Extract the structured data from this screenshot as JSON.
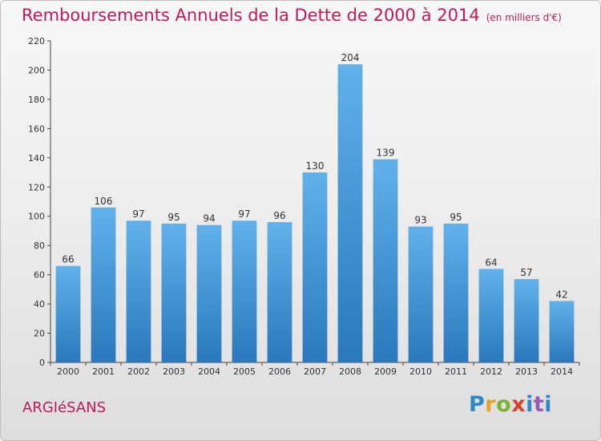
{
  "title": "Remboursements Annuels de la Dette de 2000 à 2014",
  "unit": "(en milliers d'€)",
  "city": "ARGIéSANS",
  "brand": "Proxiti",
  "colors": {
    "title": "#c2185b",
    "bar_top": "#62b1ea",
    "bar_bottom": "#2a78bb"
  },
  "chart_data": {
    "type": "bar",
    "title": "Remboursements Annuels de la Dette de 2000 à 2014",
    "subtitle": "(en milliers d'€)",
    "xlabel": "",
    "ylabel": "",
    "categories": [
      "2000",
      "2001",
      "2002",
      "2003",
      "2004",
      "2005",
      "2006",
      "2007",
      "2008",
      "2009",
      "2010",
      "2011",
      "2012",
      "2013",
      "2014"
    ],
    "values": [
      66,
      106,
      97,
      95,
      94,
      97,
      96,
      130,
      204,
      139,
      93,
      95,
      64,
      57,
      42
    ],
    "ylim": [
      0,
      220
    ],
    "yticks": [
      0,
      20,
      40,
      60,
      80,
      100,
      120,
      140,
      160,
      180,
      200,
      220
    ],
    "grid": false,
    "legend": "none"
  }
}
